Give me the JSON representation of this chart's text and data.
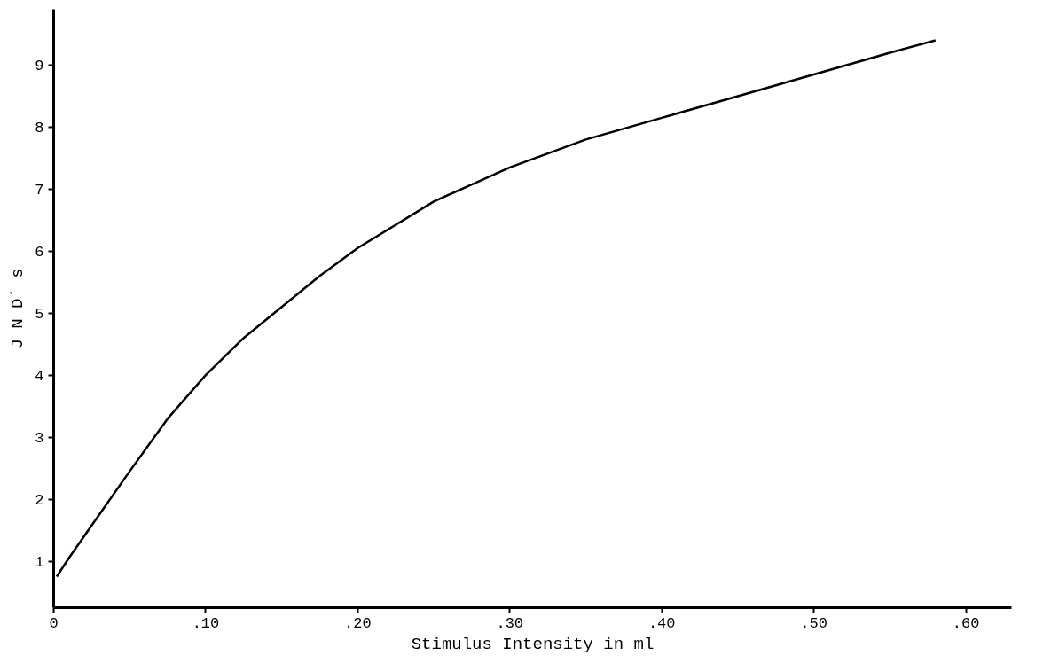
{
  "chart_data": {
    "type": "line",
    "xlabel": "Stimulus Intensity in ml",
    "ylabel": "J N D´ s",
    "x": [
      0.002,
      0.01,
      0.02,
      0.03,
      0.05,
      0.075,
      0.1,
      0.125,
      0.15,
      0.175,
      0.2,
      0.25,
      0.3,
      0.35,
      0.4,
      0.45,
      0.5,
      0.55,
      0.58
    ],
    "series": [
      {
        "color": "#000000",
        "values": [
          0.75,
          1.05,
          1.4,
          1.75,
          2.45,
          3.3,
          4.0,
          4.6,
          5.1,
          5.6,
          6.05,
          6.8,
          7.35,
          7.8,
          8.15,
          8.5,
          8.85,
          9.2,
          9.4
        ]
      }
    ],
    "xlim": [
      0,
      0.63
    ],
    "ylim": [
      0.25,
      9.9
    ],
    "xticks": [
      0,
      {
        "value": 0.1,
        "label": ".10"
      },
      {
        "value": 0.2,
        "label": ".20"
      },
      {
        "value": 0.3,
        "label": ".30"
      },
      {
        "value": 0.4,
        "label": ".40"
      },
      {
        "value": 0.5,
        "label": ".50"
      },
      {
        "value": 0.6,
        "label": ".60"
      }
    ],
    "yticks": [
      1,
      2,
      3,
      4,
      5,
      6,
      7,
      8,
      9
    ],
    "grid": false,
    "marker": "none",
    "line_style": "solid"
  }
}
